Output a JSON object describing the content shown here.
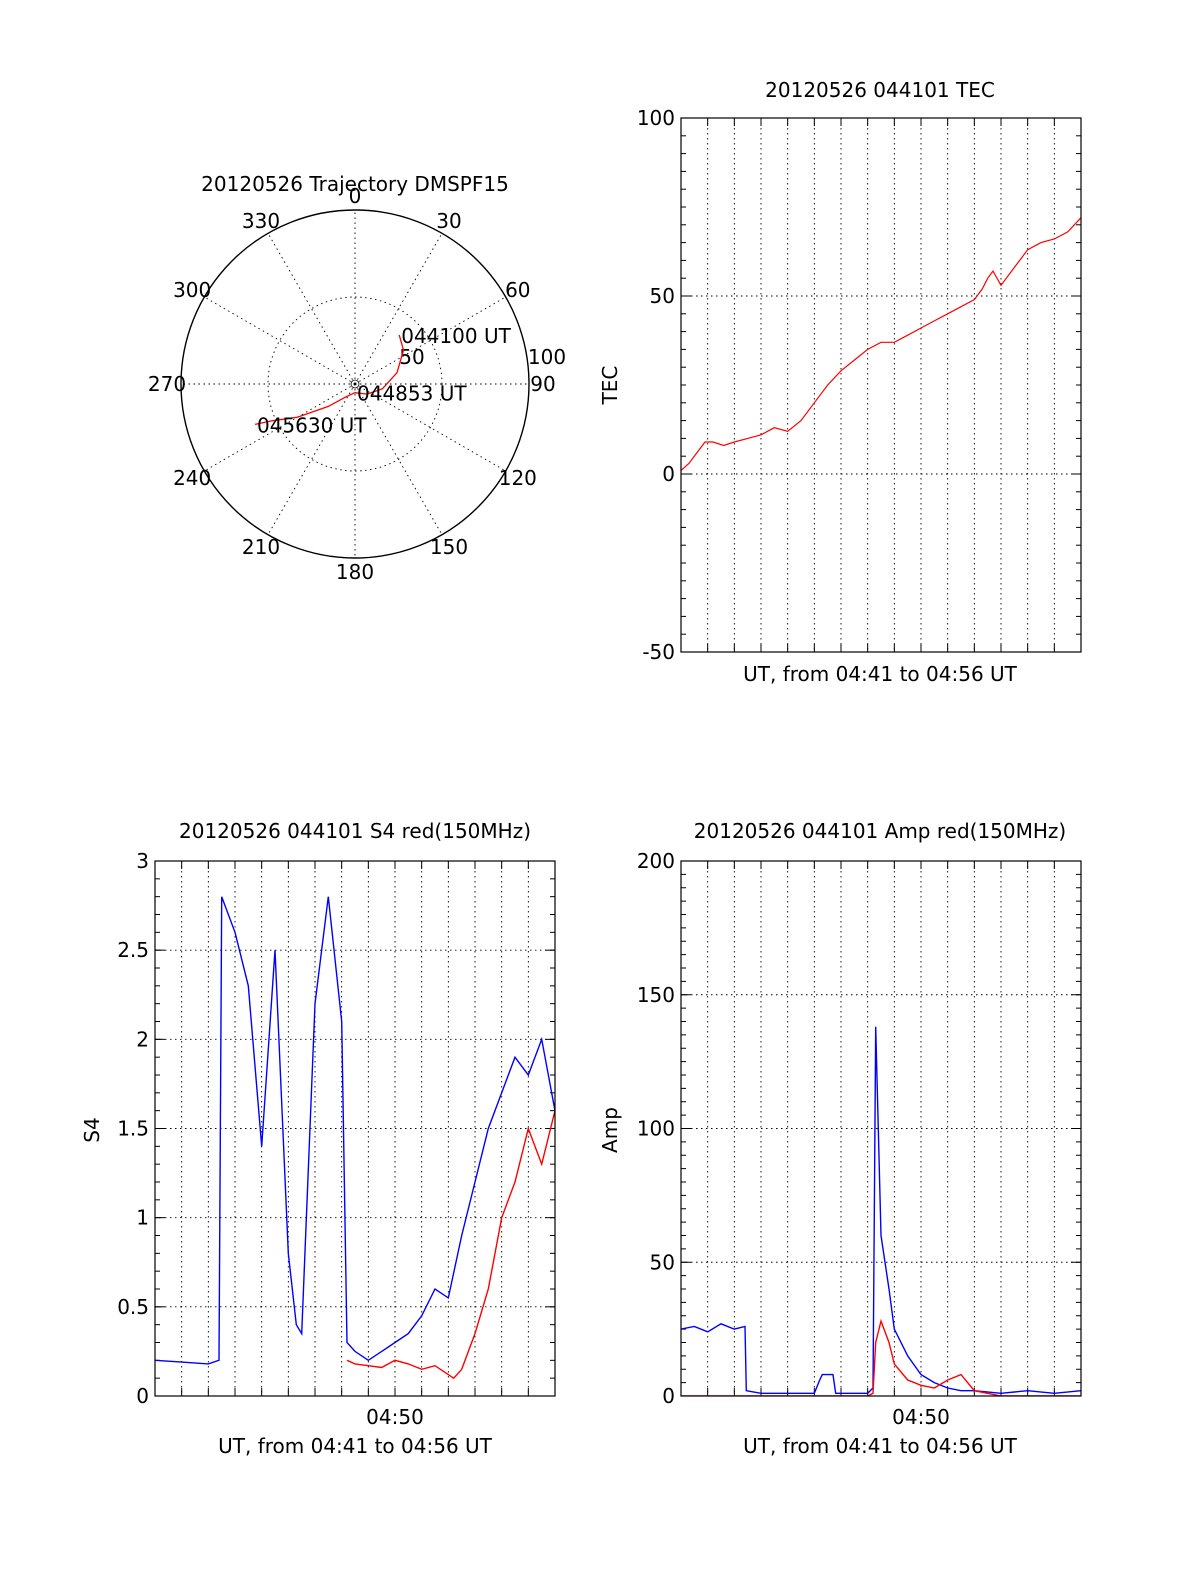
{
  "chart_data": [
    {
      "type": "polar",
      "title": "20120526 Trajectory DMSPF15",
      "azimuth_labels": [
        "0",
        "30",
        "60",
        "90",
        "120",
        "150",
        "180",
        "210",
        "240",
        "270",
        "300",
        "330"
      ],
      "radial_labels": [
        "50",
        "100"
      ],
      "rlim": [
        0,
        100
      ],
      "grid": true,
      "series": [
        {
          "color": "#ff0000",
          "points": [
            [
              38,
              42
            ],
            [
              34,
              55
            ],
            [
              25,
              75
            ],
            [
              16,
              100
            ],
            [
              9,
              130
            ],
            [
              5,
              180
            ],
            [
              9,
              215
            ],
            [
              20,
              230
            ],
            [
              38,
              240
            ],
            [
              52,
              246
            ],
            [
              62,
              248
            ]
          ]
        }
      ],
      "annotations": [
        {
          "text": "044100 UT",
          "azimuth": 38,
          "elevation": 42
        },
        {
          "text": "044853 UT",
          "azimuth": 5,
          "elevation": 180
        },
        {
          "text": "045630 UT",
          "azimuth": 62,
          "elevation": 248
        }
      ]
    },
    {
      "type": "line",
      "title": "20120526 044101 TEC",
      "xlabel": "UT, from 04:41 to 04:56 UT",
      "ylabel": "TEC",
      "ylim": [
        -50,
        100
      ],
      "yticks": [
        "-50",
        "0",
        "50",
        "100"
      ],
      "xlim": [
        0,
        15
      ],
      "grid": true,
      "series": [
        {
          "color": "#ff0000",
          "x": [
            0,
            0.3,
            0.6,
            0.9,
            1.2,
            1.6,
            2,
            2.5,
            3,
            3.5,
            4,
            4.5,
            5,
            5.5,
            6,
            6.5,
            7,
            7.5,
            8,
            8.5,
            9,
            9.5,
            10,
            10.5,
            11,
            11.3,
            11.5,
            11.7,
            12,
            12.5,
            13,
            13.5,
            14,
            14.5,
            15
          ],
          "y": [
            1,
            3,
            6,
            9,
            9,
            8,
            9,
            10,
            11,
            13,
            12,
            15,
            20,
            25,
            29,
            32,
            35,
            37,
            37,
            39,
            41,
            43,
            45,
            47,
            49,
            52,
            55,
            57,
            53,
            58,
            63,
            65,
            66,
            68,
            72
          ]
        }
      ]
    },
    {
      "type": "line",
      "title": "20120526 044101 S4 red(150MHz)",
      "xlabel": "UT, from 04:41 to 04:56 UT",
      "ylabel": "S4",
      "ylim": [
        0,
        3
      ],
      "yticks": [
        "0",
        "0.5",
        "1",
        "1.5",
        "2",
        "2.5",
        "3"
      ],
      "xlim": [
        0,
        15
      ],
      "xticks": [
        "04:50"
      ],
      "xtick_values": [
        9
      ],
      "grid": true,
      "series": [
        {
          "color": "#0000ff",
          "x": [
            0,
            1,
            2,
            2.4,
            2.5,
            3,
            3.5,
            4,
            4.5,
            5,
            5.3,
            5.5,
            6,
            6.5,
            7,
            7.2,
            7.5,
            8,
            8.5,
            9,
            9.5,
            10,
            10.5,
            11,
            11.5,
            12,
            12.5,
            13,
            13.5,
            14,
            14.5,
            15
          ],
          "y": [
            0.2,
            0.19,
            0.18,
            0.2,
            2.8,
            2.6,
            2.3,
            1.4,
            2.5,
            0.8,
            0.4,
            0.35,
            2.2,
            2.8,
            2.1,
            0.3,
            0.25,
            0.2,
            0.25,
            0.3,
            0.35,
            0.45,
            0.6,
            0.55,
            0.9,
            1.2,
            1.5,
            1.7,
            1.9,
            1.8,
            2.0,
            1.6
          ]
        },
        {
          "color": "#ff0000",
          "x": [
            7.2,
            7.5,
            8,
            8.5,
            9,
            9.5,
            10,
            10.5,
            11,
            11.2,
            11.5,
            12,
            12.5,
            13,
            13.5,
            14,
            14.5,
            15
          ],
          "y": [
            0.2,
            0.18,
            0.17,
            0.16,
            0.2,
            0.18,
            0.15,
            0.17,
            0.12,
            0.1,
            0.15,
            0.35,
            0.6,
            1.0,
            1.2,
            1.5,
            1.3,
            1.6
          ]
        }
      ]
    },
    {
      "type": "line",
      "title": "20120526 044101 Amp red(150MHz)",
      "xlabel": "UT, from 04:41 to 04:56 UT",
      "ylabel": "Amp",
      "ylim": [
        0,
        200
      ],
      "yticks": [
        "0",
        "50",
        "100",
        "150",
        "200"
      ],
      "xlim": [
        0,
        15
      ],
      "xticks": [
        "04:50"
      ],
      "xtick_values": [
        9
      ],
      "grid": true,
      "series": [
        {
          "color": "#0000ff",
          "x": [
            0,
            0.5,
            1,
            1.5,
            2,
            2.4,
            2.45,
            3,
            4,
            5,
            5.2,
            5.3,
            5.7,
            5.8,
            6,
            6.5,
            7,
            7.2,
            7.3,
            7.5,
            7.8,
            8,
            8.5,
            9,
            9.5,
            10,
            10.5,
            11,
            12,
            13,
            14,
            15
          ],
          "y": [
            25,
            26,
            24,
            27,
            25,
            26,
            2,
            1,
            1,
            1,
            6,
            8,
            8,
            1,
            1,
            1,
            1,
            3,
            138,
            60,
            40,
            25,
            15,
            8,
            5,
            3,
            2,
            2,
            1,
            2,
            1,
            2
          ]
        },
        {
          "color": "#ff0000",
          "x": [
            0,
            1,
            2,
            3,
            4,
            5,
            6,
            7,
            7.2,
            7.3,
            7.5,
            7.8,
            8,
            8.5,
            9,
            9.5,
            10,
            10.5,
            11,
            12,
            13,
            14,
            15
          ],
          "y": [
            0,
            0,
            0,
            0,
            0,
            0,
            0,
            0,
            1,
            20,
            28,
            20,
            12,
            6,
            4,
            3,
            6,
            8,
            2,
            0,
            0,
            0,
            0
          ]
        }
      ]
    }
  ]
}
